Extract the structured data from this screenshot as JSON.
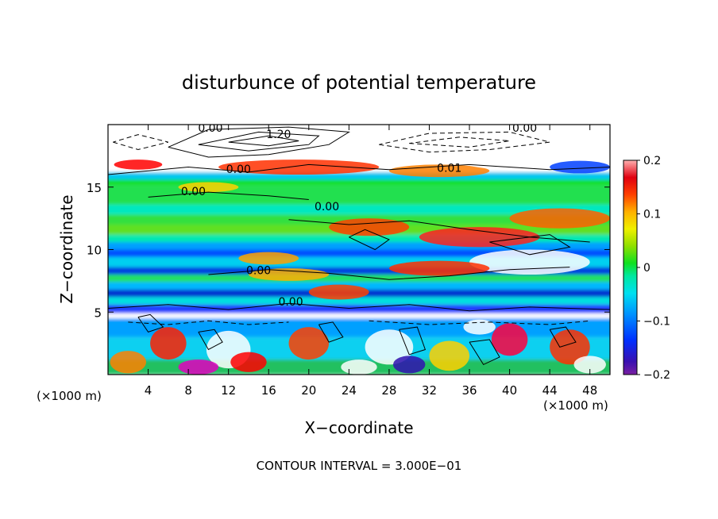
{
  "chart_data": {
    "type": "heatmap",
    "title": "disturbunce of potential temperature",
    "xlabel": "X−coordinate",
    "ylabel": "Z−coordinate",
    "x_unit_left": "(×1000 m)",
    "x_unit_right": "(×1000 m)",
    "xlim": [
      0,
      50
    ],
    "ylim": [
      0,
      20
    ],
    "x_ticks": [
      4,
      8,
      12,
      16,
      20,
      24,
      28,
      32,
      36,
      40,
      44,
      48
    ],
    "y_ticks": [
      5,
      10,
      15
    ],
    "colorbar": {
      "min": -0.2,
      "max": 0.2,
      "ticks": [
        {
          "value": 0.2,
          "label": "0.2"
        },
        {
          "value": 0.1,
          "label": "0.1"
        },
        {
          "value": 0,
          "label": "0"
        },
        {
          "value": -0.1,
          "label": "−0.1"
        },
        {
          "value": -0.2,
          "label": "−0.2"
        }
      ]
    },
    "contour_labels": [
      {
        "text": "0.00",
        "x": 10.2,
        "y": 19.5
      },
      {
        "text": "1.20",
        "x": 17.0,
        "y": 19.0
      },
      {
        "text": "0.00",
        "x": 41.5,
        "y": 19.5
      },
      {
        "text": "0.00",
        "x": 13.0,
        "y": 16.2
      },
      {
        "text": "0.00",
        "x": 8.5,
        "y": 14.4
      },
      {
        "text": "0.00",
        "x": 21.8,
        "y": 13.2
      },
      {
        "text": "0.01",
        "x": 34.0,
        "y": 16.3
      },
      {
        "text": "0.00",
        "x": 15.0,
        "y": 8.1
      },
      {
        "text": "0.00",
        "x": 18.2,
        "y": 5.6
      }
    ],
    "footer": "CONTOUR INTERVAL = 3.000E−01"
  }
}
